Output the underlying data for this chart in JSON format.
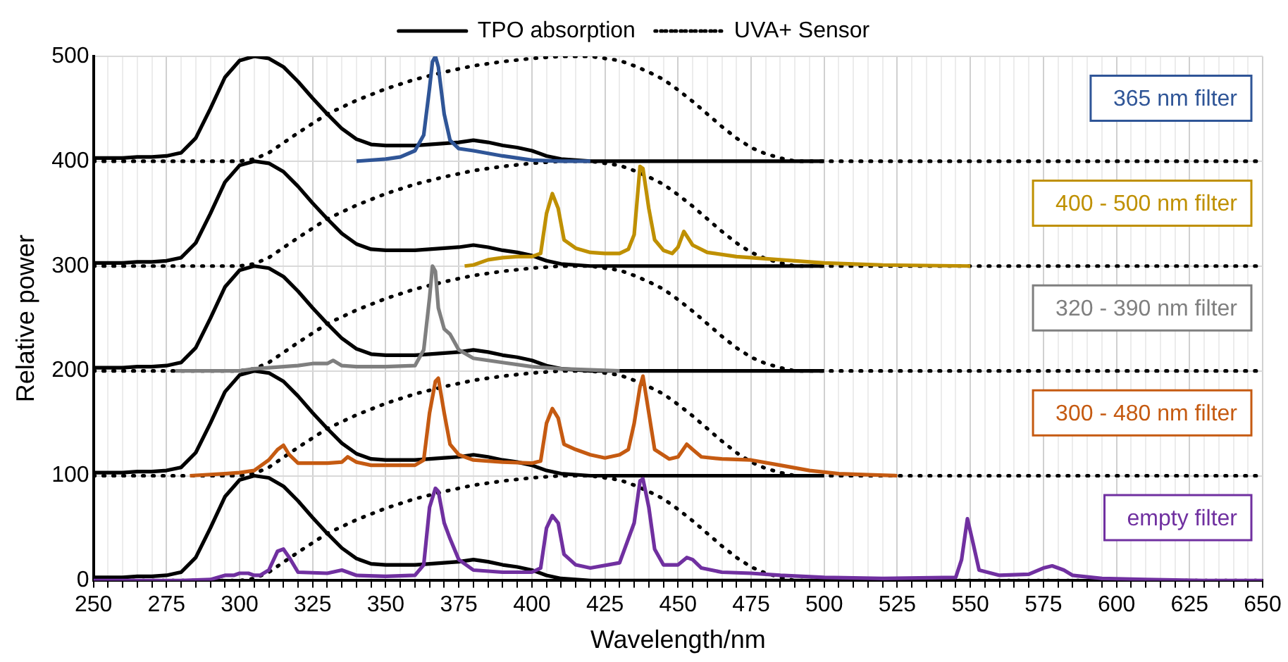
{
  "chart_data": {
    "type": "line",
    "xlabel": "Wavelength/nm",
    "ylabel": "Relative power",
    "xlim": [
      250,
      650
    ],
    "ylim": [
      0,
      500
    ],
    "yticks": [
      0,
      100,
      200,
      300,
      400,
      500
    ],
    "xticks": [
      250,
      {
        "value": 255,
        "label": null
      },
      {
        "value": 260,
        "label": null
      },
      {
        "value": 265,
        "label": null
      },
      {
        "value": 270,
        "label": null
      },
      275,
      {
        "value": 280,
        "label": null
      },
      {
        "value": 285,
        "label": null
      },
      {
        "value": 290,
        "label": null
      },
      {
        "value": 295,
        "label": null
      },
      300,
      {
        "value": 305,
        "label": null
      },
      {
        "value": 310,
        "label": null
      },
      {
        "value": 315,
        "label": null
      },
      {
        "value": 320,
        "label": null
      },
      325,
      {
        "value": 330,
        "label": null
      },
      {
        "value": 335,
        "label": null
      },
      {
        "value": 340,
        "label": null
      },
      {
        "value": 345,
        "label": null
      },
      350,
      {
        "value": 355,
        "label": null
      },
      {
        "value": 360,
        "label": null
      },
      {
        "value": 365,
        "label": null
      },
      {
        "value": 370,
        "label": null
      },
      375,
      {
        "value": 380,
        "label": null
      },
      {
        "value": 385,
        "label": null
      },
      {
        "value": 390,
        "label": null
      },
      {
        "value": 395,
        "label": null
      },
      400,
      {
        "value": 405,
        "label": null
      },
      {
        "value": 410,
        "label": null
      },
      {
        "value": 415,
        "label": null
      },
      {
        "value": 420,
        "label": null
      },
      425,
      {
        "value": 430,
        "label": null
      },
      {
        "value": 435,
        "label": null
      },
      {
        "value": 440,
        "label": null
      },
      {
        "value": 445,
        "label": null
      },
      450,
      {
        "value": 455,
        "label": null
      },
      {
        "value": 460,
        "label": null
      },
      {
        "value": 465,
        "label": null
      },
      {
        "value": 470,
        "label": null
      },
      475,
      {
        "value": 480,
        "label": null
      },
      {
        "value": 485,
        "label": null
      },
      {
        "value": 490,
        "label": null
      },
      {
        "value": 495,
        "label": null
      },
      500,
      {
        "value": 505,
        "label": null
      },
      {
        "value": 510,
        "label": null
      },
      {
        "value": 515,
        "label": null
      },
      {
        "value": 520,
        "label": null
      },
      525,
      {
        "value": 530,
        "label": null
      },
      {
        "value": 535,
        "label": null
      },
      {
        "value": 540,
        "label": null
      },
      {
        "value": 545,
        "label": null
      },
      550,
      {
        "value": 555,
        "label": null
      },
      {
        "value": 560,
        "label": null
      },
      {
        "value": 565,
        "label": null
      },
      {
        "value": 570,
        "label": null
      },
      575,
      {
        "value": 580,
        "label": null
      },
      {
        "value": 585,
        "label": null
      },
      {
        "value": 590,
        "label": null
      },
      {
        "value": 595,
        "label": null
      },
      600,
      {
        "value": 605,
        "label": null
      },
      {
        "value": 610,
        "label": null
      },
      {
        "value": 615,
        "label": null
      },
      {
        "value": 620,
        "label": null
      },
      625,
      {
        "value": 630,
        "label": null
      },
      {
        "value": 635,
        "label": null
      },
      {
        "value": 640,
        "label": null
      },
      {
        "value": 645,
        "label": null
      },
      650
    ],
    "grid": true,
    "legend": "top",
    "marker": "none",
    "annotations": [
      "365 nm filter",
      "400 - 500 nm filter",
      "320 - 390 nm filter",
      "300 - 480 nm filter",
      "empty filter"
    ],
    "series": [
      {
        "name": "TPO absorption",
        "color": "#000000",
        "line_style": "solid",
        "x": [
          250,
          255,
          260,
          265,
          270,
          275,
          280,
          285,
          290,
          295,
          300,
          305,
          310,
          315,
          320,
          325,
          330,
          335,
          340,
          345,
          350,
          355,
          360,
          365,
          370,
          375,
          380,
          385,
          390,
          395,
          400,
          405,
          410,
          415,
          420,
          425,
          430,
          435,
          440,
          445,
          450,
          455,
          460,
          465,
          470,
          475,
          480,
          485,
          490,
          495,
          500
        ],
        "values": [
          403,
          403,
          403,
          404,
          404,
          405,
          408,
          422,
          450,
          480,
          496,
          500,
          498,
          490,
          476,
          460,
          445,
          431,
          421,
          416,
          415,
          415,
          415,
          416,
          417,
          418,
          420,
          418,
          415,
          413,
          410,
          405,
          402,
          401,
          400,
          400,
          400,
          400,
          400,
          400,
          400,
          400,
          400,
          400,
          400,
          400,
          400,
          400,
          400,
          400,
          400
        ]
      },
      {
        "name": "UVA+ Sensor",
        "color": "#000000",
        "line_style": "dotted",
        "x": [
          250,
          300,
          305,
          310,
          320,
          325,
          330,
          340,
          350,
          360,
          370,
          380,
          390,
          400,
          410,
          420,
          430,
          435,
          440,
          445,
          450,
          455,
          460,
          465,
          470,
          475,
          480,
          485,
          490,
          500,
          650
        ],
        "values": [
          400,
          400,
          402,
          408,
          427,
          436,
          445,
          458,
          469,
          478,
          485,
          491,
          495,
          498,
          500,
          500,
          496,
          491,
          485,
          478,
          468,
          457,
          445,
          433,
          422,
          413,
          407,
          403,
          400,
          400,
          400
        ]
      },
      {
        "color": "#000000",
        "line_style": "solid",
        "x": [
          250,
          255,
          260,
          265,
          270,
          275,
          280,
          285,
          290,
          295,
          300,
          305,
          310,
          315,
          320,
          325,
          330,
          335,
          340,
          345,
          350,
          355,
          360,
          365,
          370,
          375,
          380,
          385,
          390,
          395,
          400,
          405,
          410,
          415,
          420,
          425,
          430,
          435,
          440,
          445,
          450,
          455,
          460,
          465,
          470,
          475,
          480,
          485,
          490,
          495,
          500
        ],
        "values": [
          303,
          303,
          303,
          304,
          304,
          305,
          308,
          322,
          350,
          380,
          396,
          400,
          398,
          390,
          376,
          360,
          345,
          331,
          321,
          316,
          315,
          315,
          315,
          316,
          317,
          318,
          320,
          318,
          315,
          313,
          310,
          305,
          302,
          301,
          300,
          300,
          300,
          300,
          300,
          300,
          300,
          300,
          300,
          300,
          300,
          300,
          300,
          300,
          300,
          300,
          300
        ]
      },
      {
        "color": "#000000",
        "line_style": "dotted",
        "x": [
          250,
          300,
          305,
          310,
          320,
          325,
          330,
          340,
          350,
          360,
          370,
          380,
          390,
          400,
          410,
          420,
          430,
          435,
          440,
          445,
          450,
          455,
          460,
          465,
          470,
          475,
          480,
          485,
          490,
          500,
          650
        ],
        "values": [
          300,
          300,
          302,
          308,
          327,
          336,
          345,
          358,
          369,
          378,
          385,
          391,
          395,
          398,
          400,
          400,
          396,
          391,
          385,
          378,
          368,
          357,
          345,
          333,
          322,
          313,
          307,
          303,
          300,
          300,
          300
        ]
      },
      {
        "color": "#000000",
        "line_style": "solid",
        "x": [
          250,
          255,
          260,
          265,
          270,
          275,
          280,
          285,
          290,
          295,
          300,
          305,
          310,
          315,
          320,
          325,
          330,
          335,
          340,
          345,
          350,
          355,
          360,
          365,
          370,
          375,
          380,
          385,
          390,
          395,
          400,
          405,
          410,
          415,
          420,
          425,
          430,
          435,
          440,
          445,
          450,
          455,
          460,
          465,
          470,
          475,
          480,
          485,
          490,
          495,
          500
        ],
        "values": [
          203,
          203,
          203,
          204,
          204,
          205,
          208,
          222,
          250,
          280,
          296,
          300,
          298,
          290,
          276,
          260,
          245,
          231,
          221,
          216,
          215,
          215,
          215,
          216,
          217,
          218,
          220,
          218,
          215,
          213,
          210,
          205,
          202,
          201,
          200,
          200,
          200,
          200,
          200,
          200,
          200,
          200,
          200,
          200,
          200,
          200,
          200,
          200,
          200,
          200,
          200
        ]
      },
      {
        "color": "#000000",
        "line_style": "dotted",
        "x": [
          250,
          300,
          305,
          310,
          320,
          325,
          330,
          340,
          350,
          360,
          370,
          380,
          390,
          400,
          410,
          420,
          430,
          435,
          440,
          445,
          450,
          455,
          460,
          465,
          470,
          475,
          480,
          485,
          490,
          500,
          650
        ],
        "values": [
          200,
          200,
          202,
          208,
          227,
          236,
          245,
          258,
          269,
          278,
          285,
          291,
          295,
          298,
          300,
          300,
          296,
          291,
          285,
          278,
          268,
          257,
          245,
          233,
          222,
          213,
          207,
          203,
          200,
          200,
          200
        ]
      },
      {
        "color": "#000000",
        "line_style": "solid",
        "x": [
          250,
          255,
          260,
          265,
          270,
          275,
          280,
          285,
          290,
          295,
          300,
          305,
          310,
          315,
          320,
          325,
          330,
          335,
          340,
          345,
          350,
          355,
          360,
          365,
          370,
          375,
          380,
          385,
          390,
          395,
          400,
          405,
          410,
          415,
          420,
          425,
          430,
          435,
          440,
          445,
          450,
          455,
          460,
          465,
          470,
          475,
          480,
          485,
          490,
          495,
          500
        ],
        "values": [
          103,
          103,
          103,
          104,
          104,
          105,
          108,
          122,
          150,
          180,
          196,
          200,
          198,
          190,
          176,
          160,
          145,
          131,
          121,
          116,
          115,
          115,
          115,
          116,
          117,
          118,
          120,
          118,
          115,
          113,
          110,
          105,
          102,
          101,
          100,
          100,
          100,
          100,
          100,
          100,
          100,
          100,
          100,
          100,
          100,
          100,
          100,
          100,
          100,
          100,
          100
        ]
      },
      {
        "color": "#000000",
        "line_style": "dotted",
        "x": [
          250,
          300,
          305,
          310,
          320,
          325,
          330,
          340,
          350,
          360,
          370,
          380,
          390,
          400,
          410,
          420,
          430,
          435,
          440,
          445,
          450,
          455,
          460,
          465,
          470,
          475,
          480,
          485,
          490,
          500,
          650
        ],
        "values": [
          100,
          100,
          102,
          108,
          127,
          136,
          145,
          158,
          169,
          178,
          185,
          191,
          195,
          198,
          200,
          200,
          196,
          191,
          185,
          178,
          168,
          157,
          145,
          133,
          122,
          113,
          107,
          103,
          100,
          100,
          100
        ]
      },
      {
        "color": "#000000",
        "line_style": "solid",
        "x": [
          250,
          255,
          260,
          265,
          270,
          275,
          280,
          285,
          290,
          295,
          300,
          305,
          310,
          315,
          320,
          325,
          330,
          335,
          340,
          345,
          350,
          355,
          360,
          365,
          370,
          375,
          380,
          385,
          390,
          395,
          400,
          405,
          410,
          415,
          420,
          425,
          430,
          435,
          440,
          445,
          450,
          455,
          460,
          465,
          470,
          475,
          480,
          485,
          490,
          495,
          500
        ],
        "values": [
          3,
          3,
          3,
          4,
          4,
          5,
          8,
          22,
          50,
          80,
          96,
          100,
          98,
          90,
          76,
          60,
          45,
          31,
          21,
          16,
          15,
          15,
          15,
          16,
          17,
          18,
          20,
          18,
          15,
          13,
          10,
          5,
          2,
          1,
          0,
          0,
          0,
          0,
          0,
          0,
          0,
          0,
          0,
          0,
          0,
          0,
          0,
          0,
          0,
          0,
          0
        ]
      },
      {
        "color": "#000000",
        "line_style": "dotted",
        "x": [
          250,
          300,
          305,
          310,
          320,
          325,
          330,
          340,
          350,
          360,
          370,
          380,
          390,
          400,
          410,
          420,
          430,
          435,
          440,
          445,
          450,
          455,
          460,
          465,
          470,
          475,
          480,
          485,
          490,
          500,
          650
        ],
        "values": [
          0,
          0,
          2,
          8,
          27,
          36,
          45,
          58,
          69,
          78,
          85,
          91,
          95,
          98,
          100,
          100,
          96,
          91,
          85,
          78,
          68,
          57,
          45,
          33,
          22,
          13,
          7,
          3,
          0,
          0,
          0
        ]
      },
      {
        "color": "#2f5597",
        "line_style": "solid",
        "x": [
          340,
          350,
          355,
          360,
          363,
          365,
          366,
          367,
          368,
          370,
          372,
          375,
          380,
          390,
          400,
          410,
          420
        ],
        "values": [
          400,
          402,
          404,
          410,
          425,
          470,
          495,
          500,
          490,
          445,
          420,
          412,
          410,
          405,
          401,
          400,
          400
        ]
      },
      {
        "color": "#bf9000",
        "line_style": "solid",
        "x": [
          377,
          380,
          385,
          390,
          395,
          400,
          403,
          405,
          407,
          409,
          411,
          415,
          420,
          425,
          430,
          433,
          435,
          437,
          438,
          440,
          442,
          445,
          448,
          450,
          452,
          455,
          460,
          470,
          480,
          490,
          500,
          510,
          520,
          550
        ],
        "values": [
          300,
          301,
          306,
          308,
          309,
          309,
          312,
          350,
          369,
          355,
          325,
          317,
          313,
          312,
          312,
          316,
          330,
          395,
          393,
          355,
          325,
          315,
          312,
          318,
          333,
          320,
          313,
          309,
          307,
          305,
          303,
          302,
          301,
          300
        ]
      },
      {
        "color": "#7f7f7f",
        "line_style": "solid",
        "x": [
          278,
          300,
          305,
          310,
          320,
          325,
          330,
          332,
          335,
          340,
          350,
          360,
          363,
          365,
          366,
          367,
          368,
          370,
          372,
          375,
          380,
          390,
          400,
          410,
          420,
          430
        ],
        "values": [
          200,
          200,
          202,
          203,
          205,
          207,
          207,
          210,
          205,
          204,
          204,
          205,
          220,
          270,
          300,
          295,
          260,
          240,
          235,
          220,
          212,
          208,
          204,
          202,
          201,
          200
        ]
      },
      {
        "color": "#c55a11",
        "line_style": "solid",
        "x": [
          283,
          295,
          300,
          305,
          310,
          313,
          315,
          317,
          320,
          330,
          335,
          337,
          340,
          345,
          360,
          363,
          365,
          367,
          368,
          370,
          372,
          375,
          380,
          390,
          400,
          403,
          405,
          407,
          409,
          411,
          415,
          420,
          425,
          430,
          433,
          435,
          437,
          438,
          440,
          442,
          447,
          450,
          453,
          455,
          458,
          465,
          475,
          485,
          495,
          505,
          515,
          525
        ],
        "values": [
          100,
          102,
          103,
          105,
          115,
          125,
          129,
          120,
          112,
          112,
          113,
          118,
          113,
          110,
          110,
          115,
          160,
          190,
          193,
          160,
          130,
          120,
          115,
          113,
          112,
          114,
          150,
          164,
          155,
          130,
          125,
          120,
          117,
          120,
          125,
          150,
          185,
          195,
          160,
          125,
          116,
          118,
          130,
          125,
          118,
          116,
          115,
          110,
          105,
          102,
          101,
          100
        ]
      },
      {
        "color": "#7030a0",
        "line_style": "solid",
        "x": [
          250,
          280,
          290,
          295,
          298,
          300,
          303,
          305,
          307,
          310,
          313,
          315,
          317,
          320,
          330,
          335,
          337,
          340,
          350,
          360,
          363,
          365,
          367,
          368,
          370,
          372,
          375,
          380,
          390,
          400,
          403,
          405,
          407,
          409,
          411,
          415,
          420,
          430,
          435,
          437,
          438,
          440,
          442,
          445,
          450,
          453,
          455,
          458,
          465,
          475,
          485,
          500,
          520,
          545,
          547,
          549,
          551,
          553,
          560,
          570,
          575,
          578,
          582,
          585,
          595,
          610,
          630,
          650
        ],
        "values": [
          0,
          0,
          1,
          5,
          5,
          7,
          7,
          5,
          5,
          10,
          28,
          30,
          22,
          8,
          7,
          10,
          8,
          5,
          4,
          5,
          15,
          70,
          88,
          85,
          55,
          40,
          20,
          10,
          8,
          8,
          12,
          50,
          62,
          55,
          25,
          15,
          12,
          17,
          55,
          95,
          97,
          70,
          30,
          15,
          15,
          22,
          20,
          12,
          8,
          7,
          5,
          3,
          2,
          3,
          20,
          59,
          35,
          10,
          5,
          6,
          12,
          14,
          10,
          5,
          2,
          1,
          0,
          0
        ]
      }
    ]
  }
}
